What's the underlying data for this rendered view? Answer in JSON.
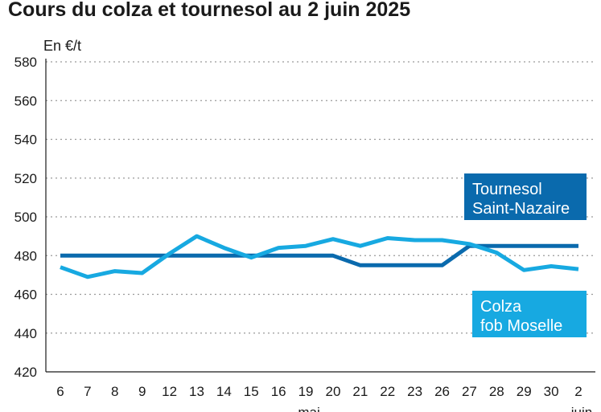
{
  "chart_data": {
    "type": "line",
    "title": "Cours du colza et tournesol au 2 juin 2025",
    "ylabel": "En €/t",
    "ylim": [
      420,
      580
    ],
    "yticks": [
      420,
      440,
      460,
      480,
      500,
      520,
      540,
      560,
      580
    ],
    "categories": [
      "6",
      "7",
      "8",
      "9",
      "12",
      "13",
      "14",
      "15",
      "16",
      "19",
      "20",
      "21",
      "22",
      "23",
      "26",
      "27",
      "28",
      "29",
      "30",
      "2"
    ],
    "month_labels": [
      {
        "index": 9,
        "text": "mai"
      },
      {
        "index": 19,
        "text": "juin"
      }
    ],
    "grid": "horizontal-dotted",
    "series": [
      {
        "name": "Tournesol Saint-Nazaire",
        "label_lines": [
          "Tournesol",
          "Saint-Nazaire"
        ],
        "color": "#0a6aad",
        "values": [
          480,
          480,
          480,
          480,
          480,
          480,
          480,
          480,
          480,
          480,
          480,
          475,
          475,
          475,
          475,
          485,
          485,
          485,
          485,
          485
        ]
      },
      {
        "name": "Colza fob Moselle",
        "label_lines": [
          "Colza",
          "fob Moselle"
        ],
        "color": "#17a9e1",
        "values": [
          474,
          469,
          472,
          471,
          481,
          490,
          484,
          479,
          484,
          485,
          488.5,
          485,
          489,
          488,
          488,
          486,
          481.5,
          472.5,
          474.5,
          473
        ]
      }
    ]
  }
}
